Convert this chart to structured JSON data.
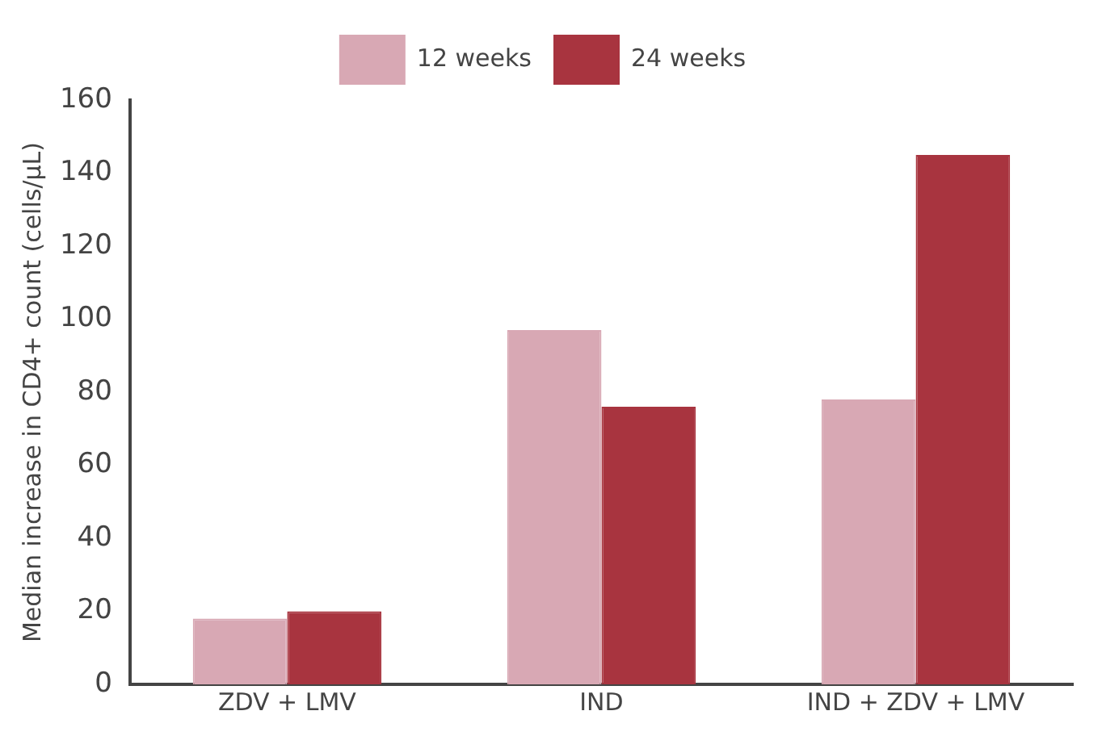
{
  "chart_data": {
    "type": "bar",
    "ylabel": "Median increase in CD4+ count (cells/µL)",
    "categories": [
      "ZDV + LMV",
      "IND",
      "IND + ZDV + LMV"
    ],
    "series": [
      {
        "name": "12 weeks",
        "color": "#d8a8b4",
        "values": [
          18,
          97,
          78
        ]
      },
      {
        "name": "24 weeks",
        "color": "#a8343f",
        "values": [
          20,
          76,
          145
        ]
      }
    ],
    "ylim": [
      0,
      160
    ],
    "yticks": [
      0,
      20,
      40,
      60,
      80,
      100,
      120,
      140,
      160
    ],
    "grid": false,
    "legend": "top"
  }
}
